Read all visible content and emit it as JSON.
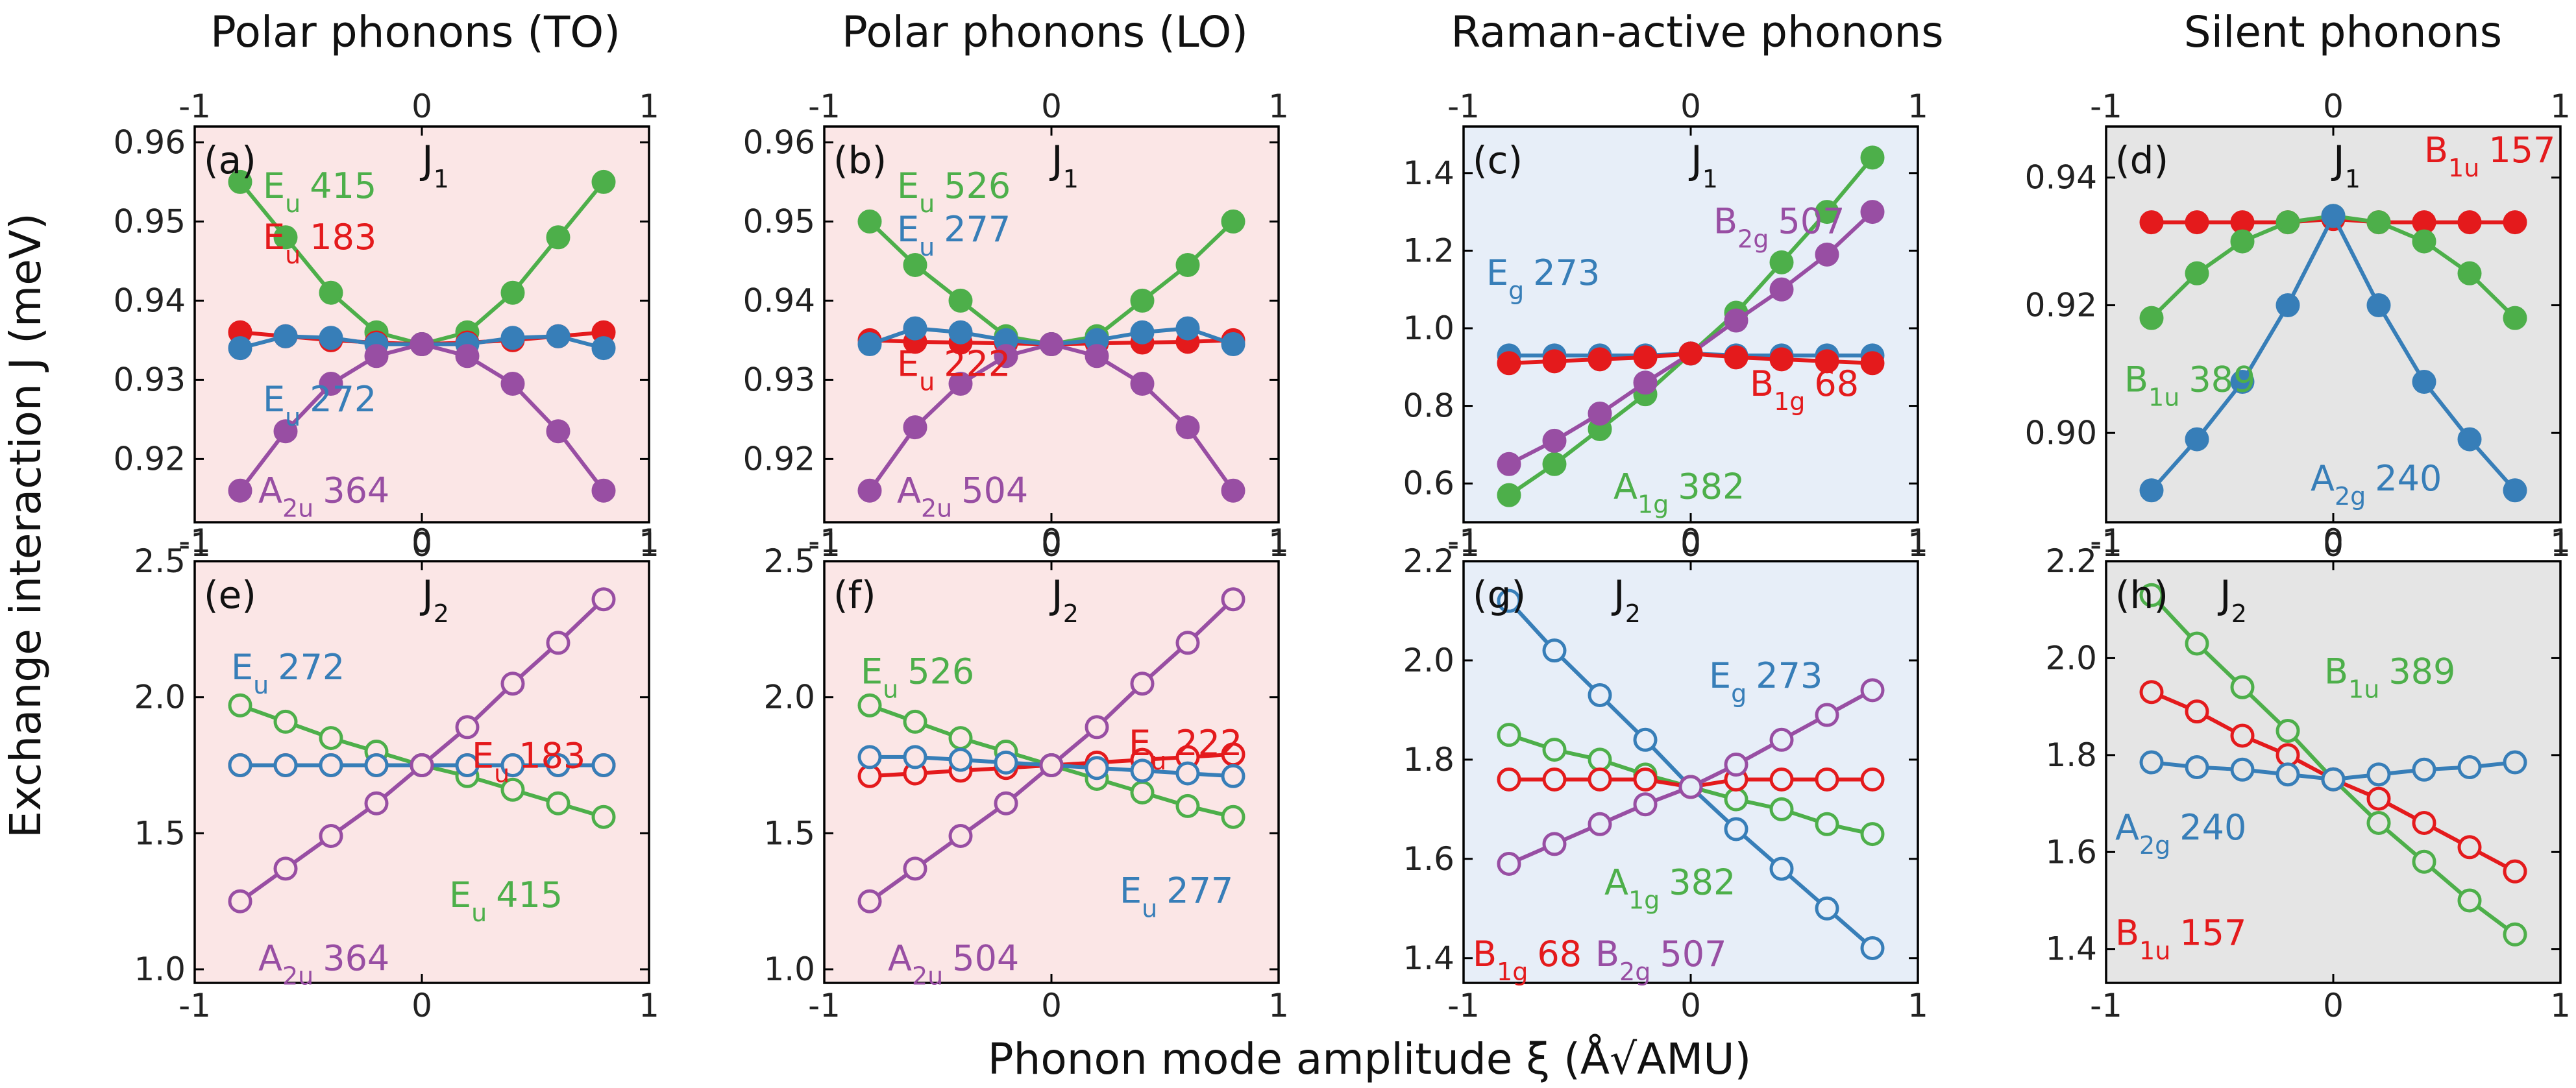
{
  "figure": {
    "y_axis_title": "Exchange interaction J (meV)",
    "x_axis_title": "Phonon mode amplitude ξ (Å√AMU)",
    "column_titles": [
      "Polar phonons (TO)",
      "Polar phonons (LO)",
      "Raman-active phonons",
      "Silent phonons"
    ],
    "colors": {
      "green": "#4daf4a",
      "red": "#e41a1c",
      "blue": "#377eb8",
      "purple": "#984ea3",
      "pink_bg": "#fbe6e6",
      "blue_bg": "#e7eef8",
      "gray_bg": "#e5e5e5"
    }
  },
  "chart_data": [
    {
      "type": "line",
      "panel": "(a)",
      "j_label": "J",
      "j_sub": "1",
      "bg": "pink",
      "xlim": [
        -1,
        1
      ],
      "ylim": [
        0.912,
        0.962
      ],
      "xticks": [
        -1,
        0,
        1
      ],
      "xtick_labels": [
        "-1",
        "0",
        "1"
      ],
      "yticks": [
        0.92,
        0.93,
        0.94,
        0.95,
        0.96
      ],
      "ytick_labels": [
        "0.92",
        "0.93",
        "0.94",
        "0.95",
        "0.96"
      ],
      "x": [
        -0.8,
        -0.6,
        -0.4,
        -0.2,
        0,
        0.2,
        0.4,
        0.6,
        0.8
      ],
      "series": [
        {
          "name": "Eu 415",
          "color": "green",
          "filled": true,
          "values": [
            0.955,
            0.948,
            0.941,
            0.936,
            0.9345,
            0.936,
            0.941,
            0.948,
            0.955
          ]
        },
        {
          "name": "Eu 183",
          "color": "red",
          "filled": true,
          "values": [
            0.936,
            0.9355,
            0.935,
            0.9347,
            0.9345,
            0.9347,
            0.935,
            0.9355,
            0.936
          ]
        },
        {
          "name": "Eu 272",
          "color": "blue",
          "filled": true,
          "values": [
            0.934,
            0.9355,
            0.9353,
            0.9345,
            0.9345,
            0.9345,
            0.9353,
            0.9355,
            0.934
          ]
        },
        {
          "name": "A2u 364",
          "color": "purple",
          "filled": true,
          "values": [
            0.916,
            0.9235,
            0.9295,
            0.933,
            0.9345,
            0.933,
            0.9295,
            0.9235,
            0.916
          ]
        }
      ],
      "annotations": [
        {
          "base": "E",
          "sub": "u",
          "num": "415",
          "color": "green"
        },
        {
          "base": "E",
          "sub": "u",
          "num": "183",
          "color": "red"
        },
        {
          "base": "E",
          "sub": "u",
          "num": "272",
          "color": "blue"
        },
        {
          "base": "A",
          "sub": "2u",
          "num": "364",
          "color": "purple"
        }
      ]
    },
    {
      "type": "line",
      "panel": "(b)",
      "j_label": "J",
      "j_sub": "1",
      "bg": "pink",
      "xlim": [
        -1,
        1
      ],
      "ylim": [
        0.912,
        0.962
      ],
      "xticks": [
        -1,
        0,
        1
      ],
      "xtick_labels": [
        "-1",
        "0",
        "1"
      ],
      "yticks": [
        0.92,
        0.93,
        0.94,
        0.95,
        0.96
      ],
      "ytick_labels": [
        "0.92",
        "0.93",
        "0.94",
        "0.95",
        "0.96"
      ],
      "x": [
        -0.8,
        -0.6,
        -0.4,
        -0.2,
        0,
        0.2,
        0.4,
        0.6,
        0.8
      ],
      "series": [
        {
          "name": "Eu 526",
          "color": "green",
          "filled": true,
          "values": [
            0.95,
            0.9445,
            0.94,
            0.9355,
            0.9345,
            0.9355,
            0.94,
            0.9445,
            0.95
          ]
        },
        {
          "name": "Eu 222",
          "color": "red",
          "filled": true,
          "values": [
            0.935,
            0.9348,
            0.9347,
            0.9346,
            0.9345,
            0.9346,
            0.9347,
            0.9348,
            0.935
          ]
        },
        {
          "name": "Eu 277",
          "color": "blue",
          "filled": true,
          "values": [
            0.9345,
            0.9365,
            0.936,
            0.935,
            0.9345,
            0.935,
            0.936,
            0.9365,
            0.9345
          ]
        },
        {
          "name": "A2u 504",
          "color": "purple",
          "filled": true,
          "values": [
            0.916,
            0.924,
            0.9295,
            0.933,
            0.9345,
            0.933,
            0.9295,
            0.924,
            0.916
          ]
        }
      ],
      "annotations": [
        {
          "base": "E",
          "sub": "u",
          "num": "526",
          "color": "green"
        },
        {
          "base": "E",
          "sub": "u",
          "num": "277",
          "color": "blue"
        },
        {
          "base": "E",
          "sub": "u",
          "num": "222",
          "color": "red"
        },
        {
          "base": "A",
          "sub": "2u",
          "num": "504",
          "color": "purple"
        }
      ]
    },
    {
      "type": "line",
      "panel": "(c)",
      "j_label": "J",
      "j_sub": "1",
      "bg": "blue",
      "xlim": [
        -1,
        1
      ],
      "ylim": [
        0.5,
        1.52
      ],
      "xticks": [
        -1,
        0,
        1
      ],
      "xtick_labels": [
        "-1",
        "0",
        "1"
      ],
      "yticks": [
        0.6,
        0.8,
        1.0,
        1.2,
        1.4
      ],
      "ytick_labels": [
        "0.6",
        "0.8",
        "1.0",
        "1.2",
        "1.4"
      ],
      "x": [
        -0.8,
        -0.6,
        -0.4,
        -0.2,
        0,
        0.2,
        0.4,
        0.6,
        0.8
      ],
      "series": [
        {
          "name": "A1g 382",
          "color": "green",
          "filled": true,
          "values": [
            0.57,
            0.65,
            0.74,
            0.83,
            0.935,
            1.04,
            1.17,
            1.3,
            1.44
          ]
        },
        {
          "name": "B2g 507",
          "color": "purple",
          "filled": true,
          "values": [
            0.65,
            0.71,
            0.78,
            0.86,
            0.935,
            1.02,
            1.1,
            1.19,
            1.3
          ]
        },
        {
          "name": "Eg 273",
          "color": "blue",
          "filled": true,
          "values": [
            0.93,
            0.93,
            0.93,
            0.93,
            0.935,
            0.93,
            0.93,
            0.93,
            0.93
          ]
        },
        {
          "name": "B1g 68",
          "color": "red",
          "filled": true,
          "values": [
            0.91,
            0.915,
            0.92,
            0.925,
            0.935,
            0.925,
            0.92,
            0.915,
            0.91
          ]
        }
      ],
      "annotations": [
        {
          "base": "B",
          "sub": "2g",
          "num": "507",
          "color": "purple"
        },
        {
          "base": "E",
          "sub": "g",
          "num": "273",
          "color": "blue"
        },
        {
          "base": "B",
          "sub": "1g",
          "num": "68",
          "color": "red"
        },
        {
          "base": "A",
          "sub": "1g",
          "num": "382",
          "color": "green"
        }
      ]
    },
    {
      "type": "line",
      "panel": "(d)",
      "j_label": "J",
      "j_sub": "1",
      "bg": "gray",
      "xlim": [
        -1,
        1
      ],
      "ylim": [
        0.886,
        0.948
      ],
      "xticks": [
        -1,
        0,
        1
      ],
      "xtick_labels": [
        "-1",
        "0",
        "1"
      ],
      "yticks": [
        0.9,
        0.92,
        0.94
      ],
      "ytick_labels": [
        "0.90",
        "0.92",
        "0.94"
      ],
      "x": [
        -0.8,
        -0.6,
        -0.4,
        -0.2,
        0,
        0.2,
        0.4,
        0.6,
        0.8
      ],
      "series": [
        {
          "name": "B1u 157",
          "color": "red",
          "filled": true,
          "values": [
            0.933,
            0.933,
            0.933,
            0.933,
            0.9335,
            0.933,
            0.933,
            0.933,
            0.933
          ]
        },
        {
          "name": "B1u 389",
          "color": "green",
          "filled": true,
          "values": [
            0.918,
            0.925,
            0.93,
            0.933,
            0.934,
            0.933,
            0.93,
            0.925,
            0.918
          ]
        },
        {
          "name": "A2g 240",
          "color": "blue",
          "filled": true,
          "values": [
            0.891,
            0.899,
            0.908,
            0.92,
            0.934,
            0.92,
            0.908,
            0.899,
            0.891
          ]
        }
      ],
      "annotations": [
        {
          "base": "B",
          "sub": "1u",
          "num": "157",
          "color": "red"
        },
        {
          "base": "B",
          "sub": "1u",
          "num": "389",
          "color": "green"
        },
        {
          "base": "A",
          "sub": "2g",
          "num": "240",
          "color": "blue"
        }
      ]
    },
    {
      "type": "line",
      "panel": "(e)",
      "j_label": "J",
      "j_sub": "2",
      "bg": "pink",
      "xlim": [
        -1,
        1
      ],
      "ylim": [
        0.95,
        2.5
      ],
      "xticks": [
        -1,
        0,
        1
      ],
      "xtick_labels": [
        "-1",
        "0",
        "1"
      ],
      "yticks": [
        1.0,
        1.5,
        2.0,
        2.5
      ],
      "ytick_labels": [
        "1.0",
        "1.5",
        "2.0",
        "2.5"
      ],
      "x": [
        -0.8,
        -0.6,
        -0.4,
        -0.2,
        0,
        0.2,
        0.4,
        0.6,
        0.8
      ],
      "series": [
        {
          "name": "Eu 415",
          "color": "green",
          "filled": false,
          "values": [
            1.97,
            1.91,
            1.85,
            1.8,
            1.75,
            1.71,
            1.66,
            1.61,
            1.56
          ]
        },
        {
          "name": "Eu 183",
          "color": "red",
          "filled": false,
          "values": [
            1.75,
            1.75,
            1.75,
            1.75,
            1.75,
            1.75,
            1.75,
            1.75,
            1.75
          ]
        },
        {
          "name": "Eu 272",
          "color": "blue",
          "filled": false,
          "values": [
            1.75,
            1.75,
            1.75,
            1.75,
            1.75,
            1.75,
            1.75,
            1.75,
            1.75
          ]
        },
        {
          "name": "A2u 364",
          "color": "purple",
          "filled": false,
          "values": [
            1.25,
            1.37,
            1.49,
            1.61,
            1.75,
            1.89,
            2.05,
            2.2,
            2.36
          ]
        }
      ],
      "annotations": [
        {
          "base": "E",
          "sub": "u",
          "num": "272",
          "color": "blue"
        },
        {
          "base": "E",
          "sub": "u",
          "num": "183",
          "color": "red"
        },
        {
          "base": "E",
          "sub": "u",
          "num": "415",
          "color": "green"
        },
        {
          "base": "A",
          "sub": "2u",
          "num": "364",
          "color": "purple"
        }
      ]
    },
    {
      "type": "line",
      "panel": "(f)",
      "j_label": "J",
      "j_sub": "2",
      "bg": "pink",
      "xlim": [
        -1,
        1
      ],
      "ylim": [
        0.95,
        2.5
      ],
      "xticks": [
        -1,
        0,
        1
      ],
      "xtick_labels": [
        "-1",
        "0",
        "1"
      ],
      "yticks": [
        1.0,
        1.5,
        2.0,
        2.5
      ],
      "ytick_labels": [
        "1.0",
        "1.5",
        "2.0",
        "2.5"
      ],
      "x": [
        -0.8,
        -0.6,
        -0.4,
        -0.2,
        0,
        0.2,
        0.4,
        0.6,
        0.8
      ],
      "series": [
        {
          "name": "Eu 526",
          "color": "green",
          "filled": false,
          "values": [
            1.97,
            1.91,
            1.85,
            1.8,
            1.75,
            1.7,
            1.65,
            1.6,
            1.56
          ]
        },
        {
          "name": "Eu 222",
          "color": "red",
          "filled": false,
          "values": [
            1.71,
            1.72,
            1.73,
            1.74,
            1.75,
            1.76,
            1.77,
            1.78,
            1.79
          ]
        },
        {
          "name": "Eu 277",
          "color": "blue",
          "filled": false,
          "values": [
            1.78,
            1.78,
            1.77,
            1.76,
            1.75,
            1.74,
            1.73,
            1.72,
            1.71
          ]
        },
        {
          "name": "A2u 504",
          "color": "purple",
          "filled": false,
          "values": [
            1.25,
            1.37,
            1.49,
            1.61,
            1.75,
            1.89,
            2.05,
            2.2,
            2.36
          ]
        }
      ],
      "annotations": [
        {
          "base": "E",
          "sub": "u",
          "num": "526",
          "color": "green"
        },
        {
          "base": "E",
          "sub": "u",
          "num": "222",
          "color": "red"
        },
        {
          "base": "E",
          "sub": "u",
          "num": "277",
          "color": "blue"
        },
        {
          "base": "A",
          "sub": "2u",
          "num": "504",
          "color": "purple"
        }
      ]
    },
    {
      "type": "line",
      "panel": "(g)",
      "j_label": "J",
      "j_sub": "2",
      "bg": "blue",
      "xlim": [
        -1,
        1
      ],
      "ylim": [
        1.35,
        2.2
      ],
      "xticks": [
        -1,
        0,
        1
      ],
      "xtick_labels": [
        "-1",
        "0",
        "1"
      ],
      "yticks": [
        1.4,
        1.6,
        1.8,
        2.0,
        2.2
      ],
      "ytick_labels": [
        "1.4",
        "1.6",
        "1.8",
        "2.0",
        "2.2"
      ],
      "x": [
        -0.8,
        -0.6,
        -0.4,
        -0.2,
        0,
        0.2,
        0.4,
        0.6,
        0.8
      ],
      "series": [
        {
          "name": "Eg 273",
          "color": "blue",
          "filled": false,
          "values": [
            2.12,
            2.02,
            1.93,
            1.84,
            1.745,
            1.66,
            1.58,
            1.5,
            1.42
          ]
        },
        {
          "name": "A1g 382",
          "color": "green",
          "filled": false,
          "values": [
            1.85,
            1.82,
            1.8,
            1.77,
            1.745,
            1.72,
            1.7,
            1.67,
            1.65
          ]
        },
        {
          "name": "B1g 68",
          "color": "red",
          "filled": false,
          "values": [
            1.76,
            1.76,
            1.76,
            1.76,
            1.745,
            1.76,
            1.76,
            1.76,
            1.76
          ]
        },
        {
          "name": "B2g 507",
          "color": "purple",
          "filled": false,
          "values": [
            1.59,
            1.63,
            1.67,
            1.71,
            1.745,
            1.79,
            1.84,
            1.89,
            1.94
          ]
        }
      ],
      "annotations": [
        {
          "base": "E",
          "sub": "g",
          "num": "273",
          "color": "blue"
        },
        {
          "base": "A",
          "sub": "1g",
          "num": "382",
          "color": "green"
        },
        {
          "base": "B",
          "sub": "1g",
          "num": "68",
          "color": "red"
        },
        {
          "base": "B",
          "sub": "2g",
          "num": "507",
          "color": "purple"
        }
      ]
    },
    {
      "type": "line",
      "panel": "(h)",
      "j_label": "J",
      "j_sub": "2",
      "bg": "gray",
      "xlim": [
        -1,
        1
      ],
      "ylim": [
        1.33,
        2.2
      ],
      "xticks": [
        -1,
        0,
        1
      ],
      "xtick_labels": [
        "-1",
        "0",
        "1"
      ],
      "yticks": [
        1.4,
        1.6,
        1.8,
        2.0,
        2.2
      ],
      "ytick_labels": [
        "1.4",
        "1.6",
        "1.8",
        "2.0",
        "2.2"
      ],
      "x": [
        -0.8,
        -0.6,
        -0.4,
        -0.2,
        0,
        0.2,
        0.4,
        0.6,
        0.8
      ],
      "series": [
        {
          "name": "B1u 389",
          "color": "green",
          "filled": false,
          "values": [
            2.13,
            2.03,
            1.94,
            1.85,
            1.75,
            1.66,
            1.58,
            1.5,
            1.43
          ]
        },
        {
          "name": "B1u 157",
          "color": "red",
          "filled": false,
          "values": [
            1.93,
            1.89,
            1.84,
            1.8,
            1.75,
            1.71,
            1.66,
            1.61,
            1.56
          ]
        },
        {
          "name": "A2g 240",
          "color": "blue",
          "filled": false,
          "values": [
            1.785,
            1.775,
            1.77,
            1.76,
            1.75,
            1.76,
            1.77,
            1.775,
            1.785
          ]
        }
      ],
      "annotations": [
        {
          "base": "B",
          "sub": "1u",
          "num": "389",
          "color": "green"
        },
        {
          "base": "A",
          "sub": "2g",
          "num": "240",
          "color": "blue"
        },
        {
          "base": "B",
          "sub": "1u",
          "num": "157",
          "color": "red"
        }
      ]
    }
  ]
}
